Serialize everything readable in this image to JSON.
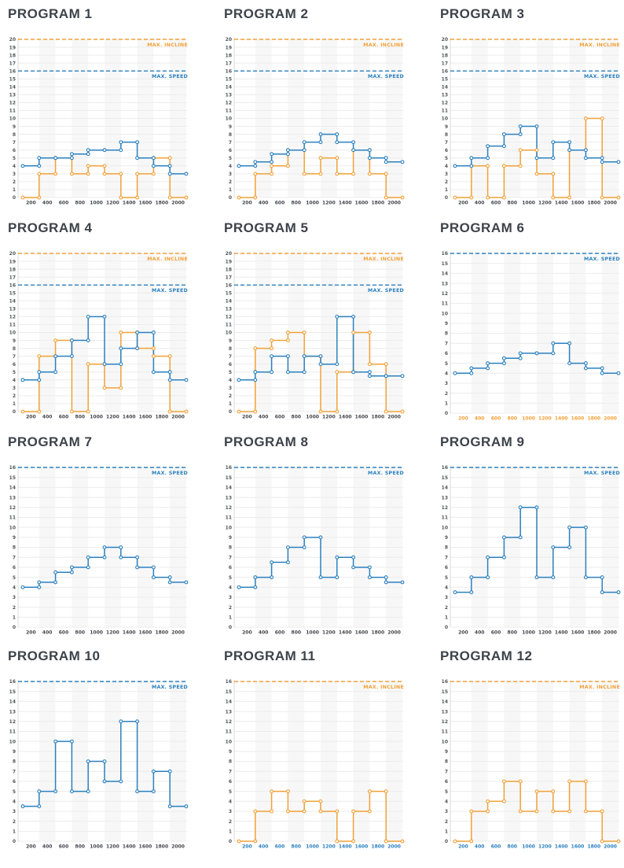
{
  "labels": {
    "max_speed_label": "MAX. SPEED",
    "max_incline_label": "MAX. INCLINE"
  },
  "colors": {
    "speed": "#2b80bf",
    "incline": "#f2a139",
    "title_text": "#3d434a",
    "axis_text": "#53565c",
    "x_default": "#44474d",
    "grid": "#ececec",
    "stripe": "#f7f7f7",
    "axis_line": "#d8d8d8"
  },
  "x_ticks": [
    200,
    400,
    600,
    800,
    1000,
    1200,
    1400,
    1600,
    1800,
    2000
  ],
  "chart_data": [
    {
      "type": "step",
      "title": "PROGRAM 1",
      "ylim": [
        0,
        20
      ],
      "x_label_color": "default",
      "series": [
        {
          "name": "speed",
          "values": [
            4,
            5,
            5,
            5.5,
            6,
            6,
            7,
            5,
            4,
            3
          ]
        },
        {
          "name": "incline",
          "values": [
            0,
            3,
            5,
            3,
            4,
            3,
            0,
            3,
            5,
            0
          ]
        }
      ],
      "max_lines": [
        {
          "name": "incline",
          "label_key": "max_incline_label",
          "value": 20
        },
        {
          "name": "speed",
          "label_key": "max_speed_label",
          "value": 16
        }
      ]
    },
    {
      "type": "step",
      "title": "PROGRAM 2",
      "ylim": [
        0,
        20
      ],
      "x_label_color": "default",
      "series": [
        {
          "name": "speed",
          "values": [
            4,
            4.5,
            5.5,
            6,
            7,
            8,
            7,
            6,
            5,
            4.5
          ]
        },
        {
          "name": "incline",
          "values": [
            0,
            3,
            4,
            6,
            3,
            5,
            3,
            6,
            3,
            0
          ]
        }
      ],
      "max_lines": [
        {
          "name": "incline",
          "label_key": "max_incline_label",
          "value": 20
        },
        {
          "name": "speed",
          "label_key": "max_speed_label",
          "value": 16
        }
      ]
    },
    {
      "type": "step",
      "title": "PROGRAM 3",
      "ylim": [
        0,
        20
      ],
      "x_label_color": "default",
      "series": [
        {
          "name": "speed",
          "values": [
            4,
            5,
            6.5,
            8,
            9,
            5,
            7,
            6,
            5,
            4.5
          ]
        },
        {
          "name": "incline",
          "values": [
            0,
            4,
            0,
            4,
            6,
            3,
            0,
            6,
            10,
            0
          ]
        }
      ],
      "max_lines": [
        {
          "name": "incline",
          "label_key": "max_incline_label",
          "value": 20
        },
        {
          "name": "speed",
          "label_key": "max_speed_label",
          "value": 16
        }
      ]
    },
    {
      "type": "step",
      "title": "PROGRAM 4",
      "ylim": [
        0,
        20
      ],
      "x_label_color": "default",
      "series": [
        {
          "name": "speed",
          "values": [
            4,
            5,
            7,
            9,
            12,
            6,
            8,
            10,
            5,
            4
          ]
        },
        {
          "name": "incline",
          "values": [
            0,
            7,
            9,
            0,
            6,
            3,
            10,
            8,
            7,
            0
          ]
        }
      ],
      "max_lines": [
        {
          "name": "incline",
          "label_key": "max_incline_label",
          "value": 20
        },
        {
          "name": "speed",
          "label_key": "max_speed_label",
          "value": 16
        }
      ]
    },
    {
      "type": "step",
      "title": "PROGRAM 5",
      "ylim": [
        0,
        20
      ],
      "x_label_color": "default",
      "series": [
        {
          "name": "speed",
          "values": [
            4,
            5,
            7,
            5,
            7,
            6,
            12,
            5,
            4.5,
            4.5
          ]
        },
        {
          "name": "incline",
          "values": [
            0,
            8,
            9,
            10,
            7,
            0,
            5,
            10,
            6,
            0
          ]
        }
      ],
      "max_lines": [
        {
          "name": "incline",
          "label_key": "max_incline_label",
          "value": 20
        },
        {
          "name": "speed",
          "label_key": "max_speed_label",
          "value": 16
        }
      ]
    },
    {
      "type": "step",
      "title": "PROGRAM 6",
      "ylim": [
        0,
        16
      ],
      "x_label_color": "incline",
      "series": [
        {
          "name": "speed",
          "values": [
            4,
            4.5,
            5,
            5.5,
            6,
            6,
            7,
            5,
            4.5,
            4
          ]
        }
      ],
      "max_lines": [
        {
          "name": "speed",
          "label_key": "max_speed_label",
          "value": 16
        }
      ]
    },
    {
      "type": "step",
      "title": "PROGRAM 7",
      "ylim": [
        0,
        16
      ],
      "x_label_color": "default",
      "series": [
        {
          "name": "speed",
          "values": [
            4,
            4.5,
            5.5,
            6,
            7,
            8,
            7,
            6,
            5,
            4.5
          ]
        }
      ],
      "max_lines": [
        {
          "name": "speed",
          "label_key": "max_speed_label",
          "value": 16
        }
      ]
    },
    {
      "type": "step",
      "title": "PROGRAM 8",
      "ylim": [
        0,
        16
      ],
      "x_label_color": "default",
      "series": [
        {
          "name": "speed",
          "values": [
            4,
            5,
            6.5,
            8,
            9,
            5,
            7,
            6,
            5,
            4.5
          ]
        }
      ],
      "max_lines": [
        {
          "name": "speed",
          "label_key": "max_speed_label",
          "value": 16
        }
      ]
    },
    {
      "type": "step",
      "title": "PROGRAM 9",
      "ylim": [
        0,
        16
      ],
      "x_label_color": "default",
      "series": [
        {
          "name": "speed",
          "values": [
            3.5,
            5,
            7,
            9,
            12,
            5,
            8,
            10,
            5,
            3.5
          ]
        }
      ],
      "max_lines": [
        {
          "name": "speed",
          "label_key": "max_speed_label",
          "value": 16
        }
      ]
    },
    {
      "type": "step",
      "title": "PROGRAM 10",
      "ylim": [
        0,
        16
      ],
      "x_label_color": "default",
      "series": [
        {
          "name": "speed",
          "values": [
            3.5,
            5,
            10,
            5,
            8,
            6,
            12,
            5,
            7,
            3.5
          ]
        }
      ],
      "max_lines": [
        {
          "name": "speed",
          "label_key": "max_speed_label",
          "value": 16
        }
      ]
    },
    {
      "type": "step",
      "title": "PROGRAM 11",
      "ylim": [
        0,
        16
      ],
      "x_label_color": "speed",
      "series": [
        {
          "name": "incline",
          "values": [
            0,
            3,
            5,
            3,
            4,
            3,
            0,
            3,
            5,
            0
          ]
        }
      ],
      "max_lines": [
        {
          "name": "incline",
          "label_key": "max_incline_label",
          "value": 16
        }
      ]
    },
    {
      "type": "step",
      "title": "PROGRAM 12",
      "ylim": [
        0,
        16
      ],
      "x_label_color": "speed",
      "series": [
        {
          "name": "incline",
          "values": [
            0,
            3,
            4,
            6,
            3,
            5,
            3,
            6,
            3,
            0
          ]
        }
      ],
      "max_lines": [
        {
          "name": "incline",
          "label_key": "max_incline_label",
          "value": 16
        }
      ]
    }
  ]
}
